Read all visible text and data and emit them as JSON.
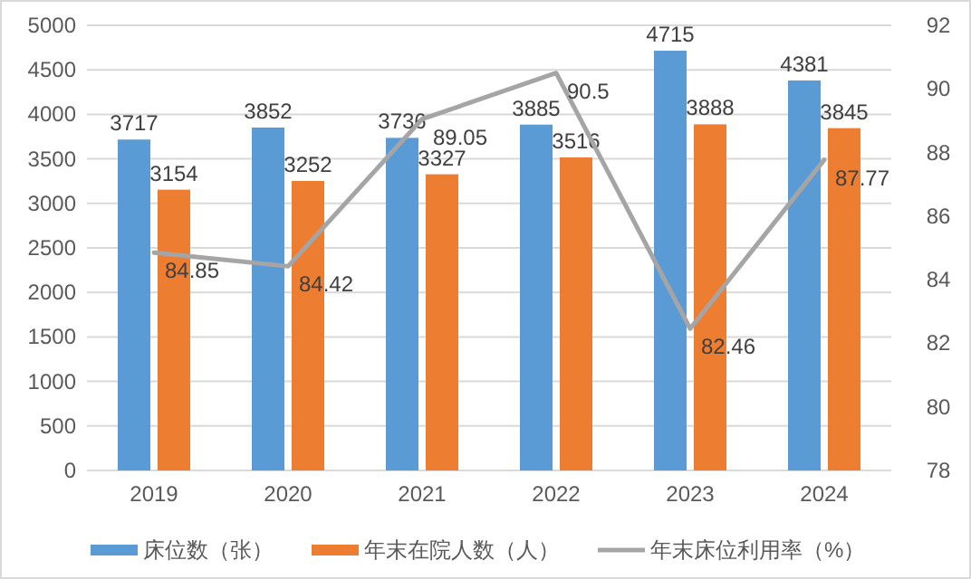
{
  "chart_data": {
    "type": "bar",
    "categories": [
      "2019",
      "2020",
      "2021",
      "2022",
      "2023",
      "2024"
    ],
    "series": [
      {
        "name": "床位数（张）",
        "color": "#5b9bd5",
        "values": [
          3717,
          3852,
          3736,
          3885,
          4715,
          4381
        ]
      },
      {
        "name": "年末在院人数（人）",
        "color": "#ed7d31",
        "values": [
          3154,
          3252,
          3327,
          3516,
          3888,
          3845
        ]
      },
      {
        "name": "年末床位利用率（%）",
        "type": "line",
        "axis": "y2",
        "color": "#a5a5a5",
        "values": [
          84.85,
          84.42,
          89.05,
          90.5,
          82.46,
          87.77
        ]
      }
    ],
    "ylim": [
      0,
      5000
    ],
    "yticks": [
      0,
      500,
      1000,
      1500,
      2000,
      2500,
      3000,
      3500,
      4000,
      4500,
      5000
    ],
    "y2lim": [
      78,
      92
    ],
    "y2ticks": [
      78,
      80,
      82,
      84,
      86,
      88,
      90,
      92
    ],
    "data_labels": true,
    "grid": "y",
    "legend": "bottom"
  }
}
